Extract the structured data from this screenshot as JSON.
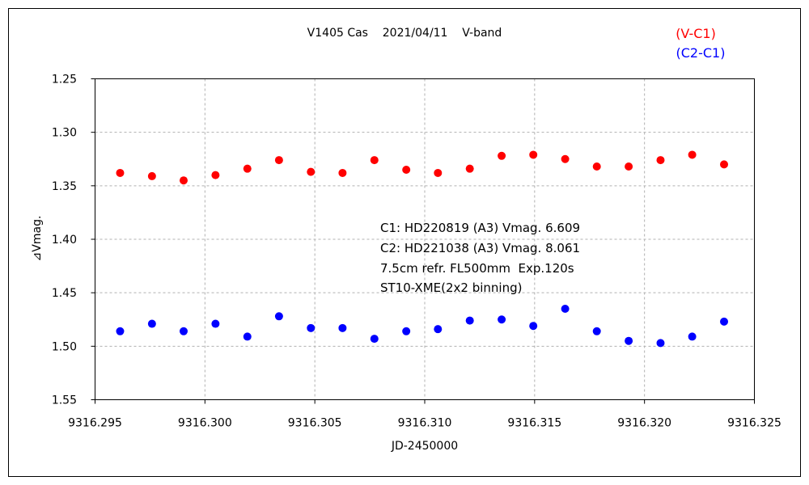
{
  "chart_data": {
    "type": "scatter",
    "title": "V1405 Cas    2021/04/11    V-band",
    "xlabel": "JD-2450000",
    "ylabel": "⊿Vmag.",
    "xlim": [
      9316.295,
      9316.325
    ],
    "ylim": [
      1.25,
      1.55
    ],
    "y_inverted": true,
    "grid": true,
    "legend_position": "top-right",
    "x_ticks": [
      "9316.295",
      "9316.300",
      "9316.305",
      "9316.310",
      "9316.315",
      "9316.320",
      "9316.325"
    ],
    "x_tick_values": [
      9316.295,
      9316.3,
      9316.305,
      9316.31,
      9316.315,
      9316.32,
      9316.325
    ],
    "y_ticks": [
      "1.25",
      "1.30",
      "1.35",
      "1.40",
      "1.45",
      "1.50",
      "1.55"
    ],
    "y_tick_values": [
      1.25,
      1.3,
      1.35,
      1.4,
      1.45,
      1.5,
      1.55
    ],
    "x": [
      9316.29614,
      9316.29759,
      9316.29903,
      9316.30048,
      9316.30193,
      9316.30337,
      9316.30482,
      9316.30626,
      9316.30771,
      9316.30916,
      9316.3106,
      9316.31205,
      9316.3135,
      9316.31494,
      9316.31639,
      9316.31783,
      9316.31928,
      9316.32073,
      9316.32217,
      9316.32362
    ],
    "series": [
      {
        "name": "(V-C1)",
        "color": "#ff0000",
        "values": [
          1.338,
          1.341,
          1.345,
          1.34,
          1.334,
          1.326,
          1.337,
          1.338,
          1.326,
          1.335,
          1.338,
          1.334,
          1.322,
          1.321,
          1.325,
          1.332,
          1.332,
          1.326,
          1.321,
          1.33
        ]
      },
      {
        "name": "(C2-C1)",
        "color": "#0000ff",
        "values": [
          1.486,
          1.479,
          1.486,
          1.479,
          1.491,
          1.472,
          1.483,
          1.483,
          1.493,
          1.486,
          1.484,
          1.476,
          1.475,
          1.481,
          1.465,
          1.486,
          1.495,
          1.497,
          1.491,
          1.477
        ]
      }
    ],
    "annotations": [
      "C1: HD220819 (A3) Vmag. 6.609",
      "C2: HD221038 (A3) Vmag. 8.061",
      "7.5cm refr. FL500mm  Exp.120s",
      "ST10-XME(2x2 binning)"
    ]
  }
}
